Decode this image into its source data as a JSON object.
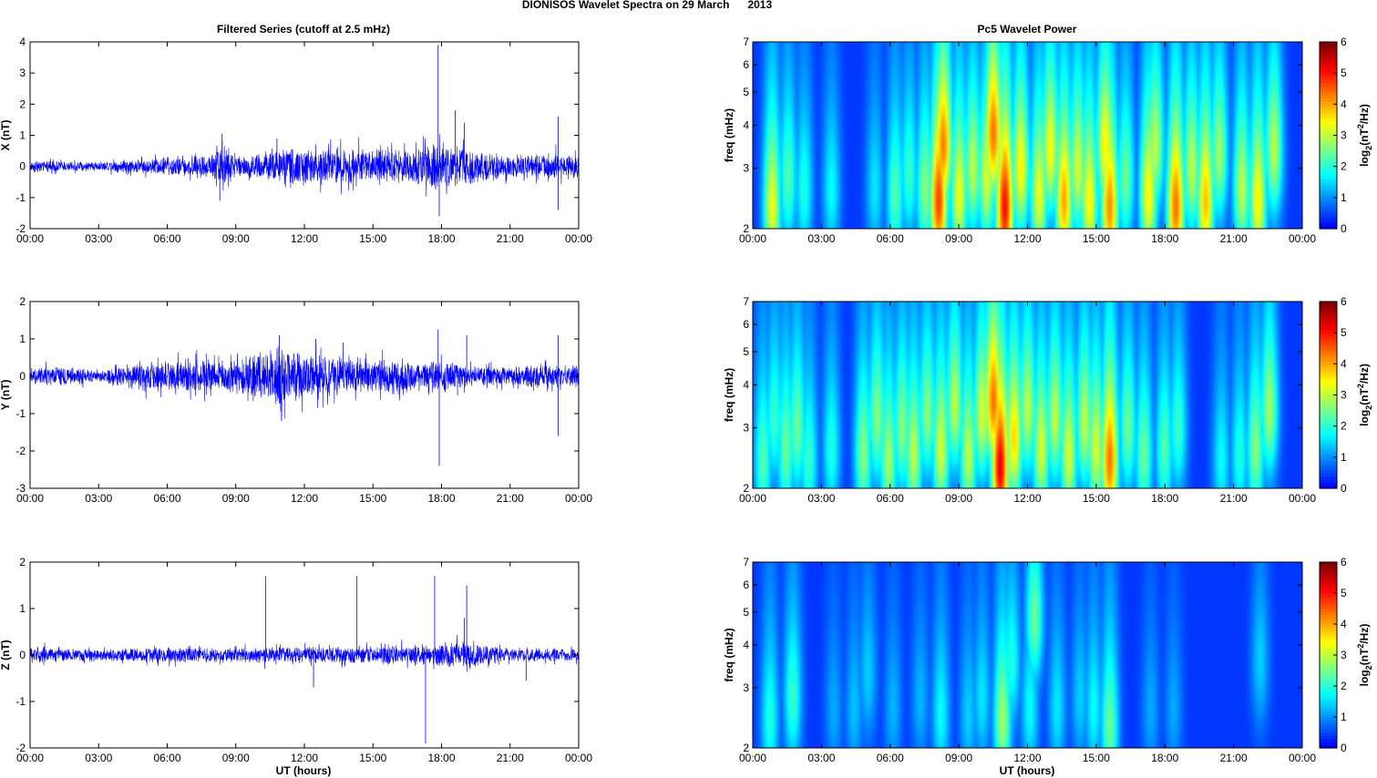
{
  "figure": {
    "title": "DIONISOS Wavelet Spectra on 29 March      2013",
    "left_title": "Filtered Series (cutoff at 2.5 mHz)",
    "right_title": "Pc5 Wavelet Power",
    "xlabel": "UT (hours)",
    "freq_label": "freq (mHz)",
    "cbar_label_main": "log",
    "cbar_label_sub": "2",
    "cbar_label_tail": "(nT",
    "cbar_label_sup": "2",
    "cbar_label_end": "/Hz)"
  },
  "colors": {
    "trace": "#0000ff",
    "axes": "#000000",
    "grid_bg": "#ffffff"
  },
  "chart_data": [
    {
      "type": "line",
      "id": "x-series",
      "ylabel": "X (nT)",
      "xlim": [
        0,
        24
      ],
      "ylim": [
        -2,
        4
      ],
      "xticks": [
        "00:00",
        "03:00",
        "06:00",
        "09:00",
        "12:00",
        "15:00",
        "18:00",
        "21:00",
        "00:00"
      ],
      "yticks": [
        "-2",
        "-1",
        "0",
        "1",
        "2",
        "3",
        "4"
      ],
      "noise_envelope": [
        [
          0,
          0.15
        ],
        [
          3,
          0.12
        ],
        [
          5,
          0.2
        ],
        [
          8,
          0.35
        ],
        [
          8.4,
          0.8
        ],
        [
          9,
          0.25
        ],
        [
          10.5,
          0.4
        ],
        [
          11.5,
          0.55
        ],
        [
          13,
          0.45
        ],
        [
          15,
          0.5
        ],
        [
          16.5,
          0.45
        ],
        [
          17.8,
          0.6
        ],
        [
          19,
          0.5
        ],
        [
          21,
          0.3
        ],
        [
          23,
          0.35
        ],
        [
          24,
          0.3
        ]
      ],
      "spikes": [
        [
          8.4,
          1.05
        ],
        [
          8.3,
          -1.1
        ],
        [
          10.8,
          0.9
        ],
        [
          17.85,
          3.9
        ],
        [
          17.9,
          -1.6
        ],
        [
          18.6,
          1.8
        ],
        [
          19.0,
          1.4
        ],
        [
          23.1,
          1.6
        ],
        [
          23.1,
          -1.4
        ]
      ]
    },
    {
      "type": "line",
      "id": "y-series",
      "ylabel": "Y (nT)",
      "xlim": [
        0,
        24
      ],
      "ylim": [
        -3,
        2
      ],
      "xticks": [
        "00:00",
        "03:00",
        "06:00",
        "09:00",
        "12:00",
        "15:00",
        "18:00",
        "21:00",
        "00:00"
      ],
      "yticks": [
        "-3",
        "-2",
        "-1",
        "0",
        "1",
        "2"
      ],
      "noise_envelope": [
        [
          0,
          0.2
        ],
        [
          2,
          0.2
        ],
        [
          3,
          0.12
        ],
        [
          5,
          0.35
        ],
        [
          7,
          0.4
        ],
        [
          9,
          0.35
        ],
        [
          10.8,
          0.7
        ],
        [
          12,
          0.5
        ],
        [
          14,
          0.4
        ],
        [
          16,
          0.35
        ],
        [
          18,
          0.35
        ],
        [
          20,
          0.2
        ],
        [
          22,
          0.25
        ],
        [
          24,
          0.25
        ]
      ],
      "spikes": [
        [
          10.9,
          1.1
        ],
        [
          11.0,
          -1.2
        ],
        [
          12.5,
          1.0
        ],
        [
          13.7,
          0.9
        ],
        [
          17.85,
          1.25
        ],
        [
          17.9,
          -2.4
        ],
        [
          19.1,
          1.1
        ],
        [
          23.1,
          1.1
        ],
        [
          23.1,
          -1.6
        ]
      ]
    },
    {
      "type": "line",
      "id": "z-series",
      "ylabel": "Z (nT)",
      "xlim": [
        0,
        24
      ],
      "ylim": [
        -2,
        2
      ],
      "xticks": [
        "00:00",
        "03:00",
        "06:00",
        "09:00",
        "12:00",
        "15:00",
        "18:00",
        "21:00",
        "00:00"
      ],
      "yticks": [
        "-2",
        "-1",
        "0",
        "1",
        "2"
      ],
      "noise_envelope": [
        [
          0,
          0.15
        ],
        [
          3,
          0.1
        ],
        [
          5,
          0.15
        ],
        [
          8,
          0.12
        ],
        [
          10,
          0.15
        ],
        [
          12,
          0.15
        ],
        [
          15,
          0.15
        ],
        [
          17,
          0.18
        ],
        [
          19,
          0.25
        ],
        [
          21,
          0.12
        ],
        [
          24,
          0.12
        ]
      ],
      "spikes": [
        [
          10.3,
          1.7
        ],
        [
          12.4,
          -0.7
        ],
        [
          14.3,
          1.7
        ],
        [
          17.3,
          -1.9
        ],
        [
          17.7,
          1.7
        ],
        [
          19.1,
          1.5
        ],
        [
          19.0,
          0.8
        ],
        [
          21.7,
          -0.55
        ]
      ]
    },
    {
      "type": "heatmap",
      "id": "x-wavelet",
      "ylabel": "freq (mHz)",
      "xlim": [
        0,
        24
      ],
      "ylim": [
        2,
        7
      ],
      "yscale": "log",
      "xticks": [
        "00:00",
        "03:00",
        "06:00",
        "09:00",
        "12:00",
        "15:00",
        "18:00",
        "21:00",
        "00:00"
      ],
      "yticks": [
        "2",
        "3",
        "4",
        "5",
        "6",
        "7"
      ],
      "colorbar": {
        "range": [
          0,
          6
        ],
        "ticks": [
          "0",
          "1",
          "2",
          "3",
          "4",
          "5",
          "6"
        ],
        "colormap": "jet"
      },
      "blobs": [
        [
          0.8,
          2.3,
          3.4
        ],
        [
          1.5,
          2.8,
          2.2
        ],
        [
          2.2,
          2.6,
          1.8
        ],
        [
          3.4,
          2.6,
          1.6
        ],
        [
          5.3,
          2.6,
          1.4
        ],
        [
          6.2,
          2.5,
          2.2
        ],
        [
          6.8,
          2.9,
          2.0
        ],
        [
          7.5,
          2.6,
          2.6
        ],
        [
          8.1,
          2.4,
          5.0
        ],
        [
          8.3,
          3.5,
          4.5
        ],
        [
          9.0,
          2.5,
          3.4
        ],
        [
          9.6,
          3.0,
          3.0
        ],
        [
          10.2,
          2.8,
          3.2
        ],
        [
          10.5,
          3.8,
          4.6
        ],
        [
          11.0,
          2.3,
          5.4
        ],
        [
          11.7,
          3.0,
          3.6
        ],
        [
          12.5,
          2.5,
          3.4
        ],
        [
          13.0,
          3.4,
          3.5
        ],
        [
          13.6,
          2.4,
          4.2
        ],
        [
          14.2,
          3.0,
          3.2
        ],
        [
          14.7,
          2.4,
          3.6
        ],
        [
          15.4,
          3.5,
          3.6
        ],
        [
          15.6,
          2.3,
          4.4
        ],
        [
          16.3,
          2.8,
          2.4
        ],
        [
          17.3,
          2.5,
          3.6
        ],
        [
          17.6,
          3.5,
          3.0
        ],
        [
          18.5,
          2.3,
          4.6
        ],
        [
          19.2,
          3.0,
          3.0
        ],
        [
          19.8,
          2.4,
          4.0
        ],
        [
          20.4,
          3.3,
          2.8
        ],
        [
          21.4,
          2.6,
          3.0
        ],
        [
          22.1,
          2.4,
          3.6
        ],
        [
          22.8,
          3.4,
          3.0
        ]
      ]
    },
    {
      "type": "heatmap",
      "id": "y-wavelet",
      "ylabel": "freq (mHz)",
      "xlim": [
        0,
        24
      ],
      "ylim": [
        2,
        7
      ],
      "yscale": "log",
      "xticks": [
        "00:00",
        "03:00",
        "06:00",
        "09:00",
        "12:00",
        "15:00",
        "18:00",
        "21:00",
        "00:00"
      ],
      "yticks": [
        "2",
        "3",
        "4",
        "5",
        "6",
        "7"
      ],
      "colorbar": {
        "range": [
          0,
          6
        ],
        "ticks": [
          "0",
          "1",
          "2",
          "3",
          "4",
          "5",
          "6"
        ],
        "colormap": "jet"
      },
      "blobs": [
        [
          0.4,
          2.4,
          2.2
        ],
        [
          0.9,
          3.2,
          2.0
        ],
        [
          1.4,
          2.6,
          2.4
        ],
        [
          1.9,
          3.0,
          2.4
        ],
        [
          2.4,
          2.4,
          2.0
        ],
        [
          3.4,
          2.6,
          1.8
        ],
        [
          4.8,
          2.5,
          2.6
        ],
        [
          5.4,
          3.2,
          2.6
        ],
        [
          5.9,
          2.4,
          2.8
        ],
        [
          6.5,
          3.0,
          2.6
        ],
        [
          7.0,
          2.5,
          3.0
        ],
        [
          7.6,
          3.3,
          2.6
        ],
        [
          8.2,
          2.6,
          3.2
        ],
        [
          8.8,
          3.5,
          3.0
        ],
        [
          9.4,
          2.5,
          3.0
        ],
        [
          10.0,
          3.3,
          3.2
        ],
        [
          10.5,
          3.6,
          4.6
        ],
        [
          10.8,
          2.3,
          5.6
        ],
        [
          11.4,
          2.8,
          3.8
        ],
        [
          12.0,
          3.4,
          3.0
        ],
        [
          12.6,
          2.6,
          3.2
        ],
        [
          13.2,
          3.2,
          3.0
        ],
        [
          13.8,
          2.5,
          3.2
        ],
        [
          14.5,
          3.1,
          3.0
        ],
        [
          15.0,
          2.6,
          3.2
        ],
        [
          15.6,
          2.4,
          4.6
        ],
        [
          16.4,
          3.0,
          2.4
        ],
        [
          17.1,
          2.5,
          2.4
        ],
        [
          18.0,
          2.6,
          2.2
        ],
        [
          18.6,
          3.0,
          2.0
        ],
        [
          20.5,
          2.4,
          1.6
        ],
        [
          21.3,
          2.5,
          1.8
        ],
        [
          22.0,
          2.6,
          2.6
        ],
        [
          22.6,
          3.4,
          2.8
        ]
      ]
    },
    {
      "type": "heatmap",
      "id": "z-wavelet",
      "ylabel": "freq (mHz)",
      "xlim": [
        0,
        24
      ],
      "ylim": [
        2,
        7
      ],
      "yscale": "log",
      "xticks": [
        "00:00",
        "03:00",
        "06:00",
        "09:00",
        "12:00",
        "15:00",
        "18:00",
        "21:00",
        "00:00"
      ],
      "yticks": [
        "2",
        "3",
        "4",
        "5",
        "6",
        "7"
      ],
      "colorbar": {
        "range": [
          0,
          6
        ],
        "ticks": [
          "0",
          "1",
          "2",
          "3",
          "4",
          "5",
          "6"
        ],
        "colormap": "jet"
      },
      "blobs": [
        [
          0.7,
          2.4,
          1.8
        ],
        [
          1.7,
          2.8,
          2.0
        ],
        [
          3.5,
          2.6,
          0.9
        ],
        [
          4.4,
          2.6,
          1.1
        ],
        [
          5.0,
          3.3,
          1.2
        ],
        [
          6.1,
          2.6,
          1.0
        ],
        [
          7.3,
          2.8,
          1.0
        ],
        [
          8.2,
          2.5,
          1.6
        ],
        [
          9.4,
          2.5,
          1.2
        ],
        [
          10.0,
          2.8,
          1.4
        ],
        [
          10.9,
          2.4,
          2.8
        ],
        [
          11.3,
          3.6,
          1.8
        ],
        [
          12.1,
          2.6,
          1.6
        ],
        [
          12.3,
          4.8,
          2.4
        ],
        [
          13.3,
          2.6,
          1.4
        ],
        [
          14.3,
          2.8,
          1.2
        ],
        [
          14.9,
          2.6,
          1.6
        ],
        [
          15.6,
          2.3,
          2.4
        ],
        [
          17.4,
          2.6,
          0.9
        ],
        [
          18.4,
          2.6,
          0.9
        ],
        [
          22.2,
          3.6,
          1.2
        ]
      ]
    }
  ]
}
